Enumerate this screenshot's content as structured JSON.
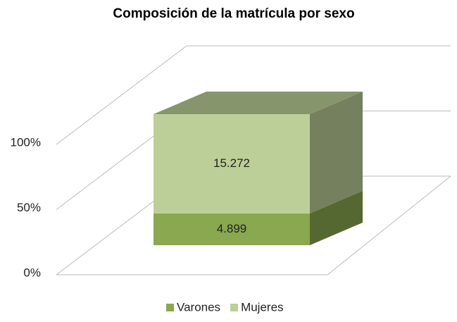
{
  "chart_data": {
    "type": "bar3d",
    "stacking": "percent",
    "title": "Composición  de la matrícula por sexo",
    "categories": [
      null
    ],
    "series": [
      {
        "name": "Varones",
        "color": "#8aa84f",
        "values": [
          4899
        ],
        "value_labels": [
          "4.899"
        ]
      },
      {
        "name": "Mujeres",
        "color": "#bccf98",
        "values": [
          15272
        ],
        "value_labels": [
          "15.272"
        ]
      }
    ],
    "ylim": [
      0,
      100
    ],
    "yticks": [
      {
        "value": 0,
        "label": "0%"
      },
      {
        "value": 50,
        "label": "50%"
      },
      {
        "value": 100,
        "label": "100%"
      }
    ],
    "grid": true,
    "legend": "bottom"
  }
}
